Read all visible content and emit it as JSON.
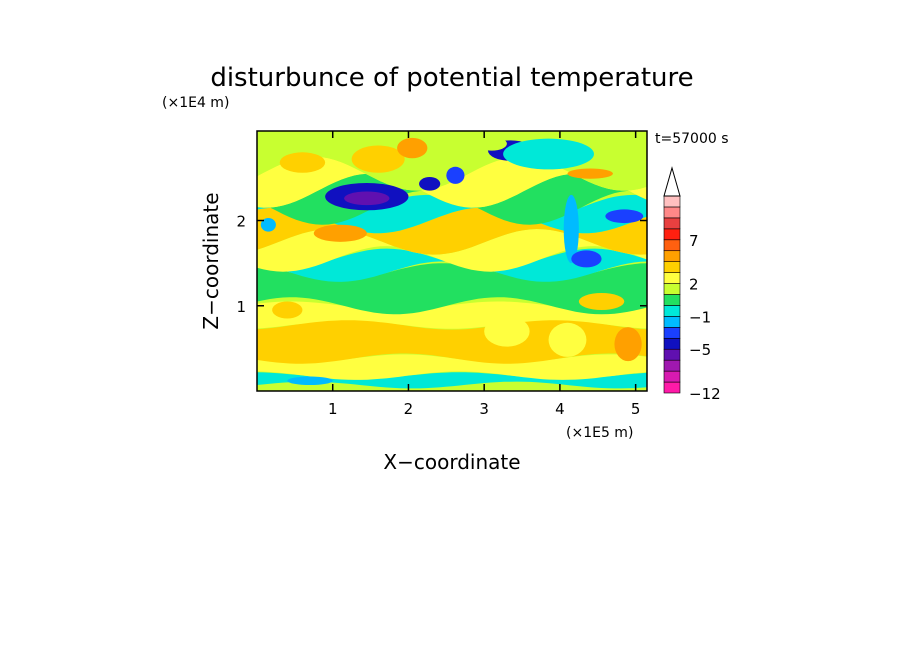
{
  "chart_data": {
    "type": "heatmap",
    "title": "disturbunce of potential temperature",
    "time_label": "t=57000 s",
    "xlabel": "X−coordinate",
    "ylabel": "Z−coordinate",
    "x_unit": "(×1E5 m)",
    "y_unit": "(×1E4 m)",
    "xlim": [
      0,
      5.15
    ],
    "ylim": [
      0,
      3.05
    ],
    "x_ticks": [
      {
        "v": 1,
        "label": "1"
      },
      {
        "v": 2,
        "label": "2"
      },
      {
        "v": 3,
        "label": "3"
      },
      {
        "v": 4,
        "label": "4"
      },
      {
        "v": 5,
        "label": "5"
      }
    ],
    "y_ticks": [
      {
        "v": 1,
        "label": "1"
      },
      {
        "v": 2,
        "label": "2"
      }
    ],
    "colorbar": {
      "colors": [
        "#ff1aa8",
        "#d81ab0",
        "#a018b0",
        "#6010b0",
        "#1010c0",
        "#1a40ff",
        "#00bbff",
        "#00e8d8",
        "#22e060",
        "#c8ff30",
        "#ffff40",
        "#ffd000",
        "#ffa000",
        "#ff6010",
        "#ff2010",
        "#e84040",
        "#ff8888",
        "#ffc0c0"
      ],
      "extend_max": true,
      "labels": [
        {
          "index": 0,
          "label": "−12"
        },
        {
          "index": 4,
          "label": "−5"
        },
        {
          "index": 7,
          "label": "−1"
        },
        {
          "index": 10,
          "label": "2"
        },
        {
          "index": 14,
          "label": "7"
        }
      ]
    },
    "grid": false,
    "bands": [
      {
        "z0": 0.0,
        "z1": 0.07,
        "level": 9,
        "wave": 0.02
      },
      {
        "z0": 0.07,
        "z1": 0.18,
        "level": 7,
        "wave": 0.04
      },
      {
        "z0": 0.18,
        "z1": 0.38,
        "level": 10,
        "wave": 0.05
      },
      {
        "z0": 0.38,
        "z1": 0.78,
        "level": 11,
        "wave": 0.06
      },
      {
        "z0": 0.78,
        "z1": 1.0,
        "level": 10,
        "wave": 0.05
      },
      {
        "z0": 1.0,
        "z1": 1.4,
        "level": 8,
        "wave": 0.1
      },
      {
        "z0": 1.4,
        "z1": 1.55,
        "level": 7,
        "wave": 0.12
      },
      {
        "z0": 1.55,
        "z1": 1.75,
        "level": 10,
        "wave": 0.15
      },
      {
        "z0": 1.75,
        "z1": 2.0,
        "level": 11,
        "wave": 0.15
      },
      {
        "z0": 2.0,
        "z1": 2.15,
        "level": 7,
        "wave": 0.15
      },
      {
        "z0": 2.15,
        "z1": 2.35,
        "level": 8,
        "wave": 0.2
      },
      {
        "z0": 2.35,
        "z1": 2.55,
        "level": 10,
        "wave": 0.2
      },
      {
        "z0": 2.55,
        "z1": 3.05,
        "level": 9,
        "wave": 0.2
      }
    ],
    "blobs": [
      {
        "x": 1.45,
        "z": 2.28,
        "rx": 0.55,
        "rz": 0.16,
        "level": 4
      },
      {
        "x": 1.45,
        "z": 2.26,
        "rx": 0.3,
        "rz": 0.08,
        "level": 3
      },
      {
        "x": 2.28,
        "z": 2.43,
        "rx": 0.14,
        "rz": 0.08,
        "level": 4
      },
      {
        "x": 2.62,
        "z": 2.53,
        "rx": 0.12,
        "rz": 0.1,
        "level": 5
      },
      {
        "x": 3.35,
        "z": 2.82,
        "rx": 0.3,
        "rz": 0.12,
        "level": 4
      },
      {
        "x": 3.85,
        "z": 2.78,
        "rx": 0.6,
        "rz": 0.18,
        "level": 7
      },
      {
        "x": 4.85,
        "z": 2.05,
        "rx": 0.25,
        "rz": 0.08,
        "level": 5
      },
      {
        "x": 4.15,
        "z": 1.9,
        "rx": 0.1,
        "rz": 0.4,
        "level": 6
      },
      {
        "x": 4.35,
        "z": 1.55,
        "rx": 0.2,
        "rz": 0.1,
        "level": 5
      },
      {
        "x": 1.6,
        "z": 2.72,
        "rx": 0.35,
        "rz": 0.16,
        "level": 11
      },
      {
        "x": 2.05,
        "z": 2.85,
        "rx": 0.2,
        "rz": 0.12,
        "level": 12
      },
      {
        "x": 0.6,
        "z": 2.68,
        "rx": 0.3,
        "rz": 0.12,
        "level": 11
      },
      {
        "x": 1.1,
        "z": 1.85,
        "rx": 0.35,
        "rz": 0.1,
        "level": 12
      },
      {
        "x": 0.4,
        "z": 0.95,
        "rx": 0.2,
        "rz": 0.1,
        "level": 11
      },
      {
        "x": 4.9,
        "z": 0.55,
        "rx": 0.18,
        "rz": 0.2,
        "level": 12
      },
      {
        "x": 4.55,
        "z": 1.05,
        "rx": 0.3,
        "rz": 0.1,
        "level": 11
      },
      {
        "x": 3.3,
        "z": 0.7,
        "rx": 0.3,
        "rz": 0.18,
        "level": 10
      },
      {
        "x": 4.1,
        "z": 0.6,
        "rx": 0.25,
        "rz": 0.2,
        "level": 10
      },
      {
        "x": 0.7,
        "z": 0.12,
        "rx": 0.3,
        "rz": 0.05,
        "level": 6
      },
      {
        "x": 4.4,
        "z": 2.55,
        "rx": 0.3,
        "rz": 0.06,
        "level": 12
      },
      {
        "x": 0.15,
        "z": 1.95,
        "rx": 0.1,
        "rz": 0.08,
        "level": 6
      },
      {
        "x": 3.1,
        "z": 2.9,
        "rx": 0.2,
        "rz": 0.08,
        "level": 9
      }
    ]
  }
}
